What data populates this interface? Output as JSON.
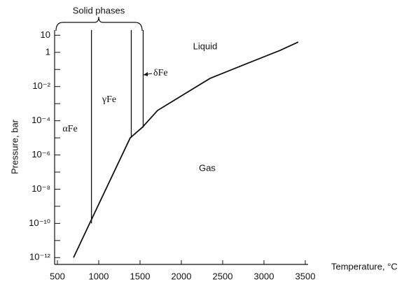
{
  "chart_data": {
    "type": "line",
    "ylog": true,
    "xlabel": "Temperature, °C",
    "ylabel": "Pressure, bar",
    "annotations": [
      "Solid phases",
      "Liquid",
      "Gas",
      "αFe",
      "γFe",
      "δFe"
    ],
    "xlim": [
      466,
      3534
    ],
    "ylim": [
      4e-13,
      20
    ],
    "xticks": [
      500,
      1000,
      1500,
      2000,
      2500,
      3000,
      3500
    ],
    "yticks": [
      {
        "value": 1e-12,
        "label": "10⁻¹²"
      },
      {
        "value": 1e-10,
        "label": "10⁻¹⁰"
      },
      {
        "value": 1e-08,
        "label": "10⁻⁸"
      },
      {
        "value": 1e-06,
        "label": "10⁻⁶"
      },
      {
        "value": 0.0001,
        "label": "10⁻⁴"
      },
      {
        "value": 0.01,
        "label": "10⁻²"
      },
      1,
      10
    ],
    "yminor": [
      1e-11,
      1e-09,
      1e-07,
      1e-05,
      0.001,
      0.1
    ],
    "color": "#111111",
    "series": [
      {
        "x": [
          695,
          890,
          1381,
          1525,
          1712,
          2008,
          2347,
          2771,
          3195,
          3415
        ],
        "values": [
          1e-12,
          1e-10,
          1e-05,
          4e-05,
          0.0004,
          0.003,
          0.03,
          0.2,
          1.3,
          4
        ]
      },
      {
        "x": [
          912,
          912
        ],
        "values": [
          1e-10,
          20
        ]
      },
      {
        "x": [
          1394,
          1394
        ],
        "values": [
          1e-05,
          20
        ]
      },
      {
        "x": [
          1538,
          1538
        ],
        "values": [
          4e-05,
          20
        ]
      }
    ]
  }
}
